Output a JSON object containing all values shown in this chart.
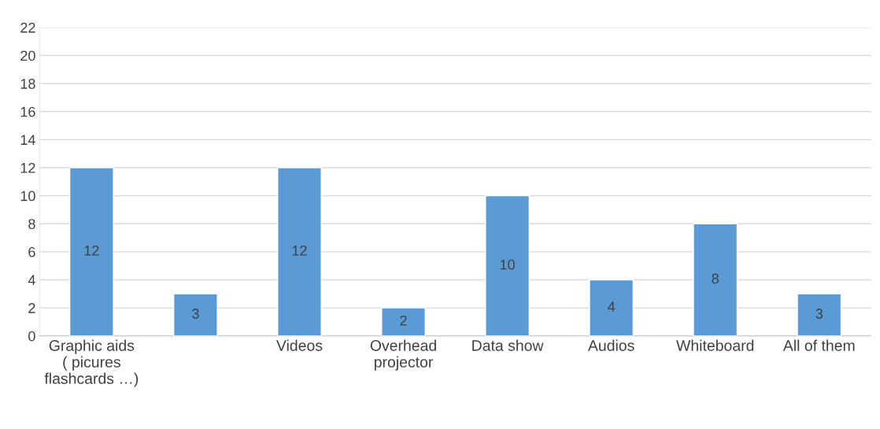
{
  "chart_data": {
    "type": "bar",
    "categories": [
      "Graphic aids\n( picures\nflashcards …)",
      null,
      "Videos",
      "Overhead\nprojector",
      "Data show",
      "Audios",
      "Whiteboard",
      "All of them"
    ],
    "values": [
      12,
      3,
      12,
      2,
      10,
      4,
      8,
      3
    ],
    "color": "#5b9bd5",
    "ylim": [
      0,
      22
    ],
    "yticks": [
      0,
      2,
      4,
      6,
      8,
      10,
      12,
      14,
      16,
      18,
      20,
      22
    ],
    "grid": "y",
    "data_labels": true,
    "legend": false
  }
}
